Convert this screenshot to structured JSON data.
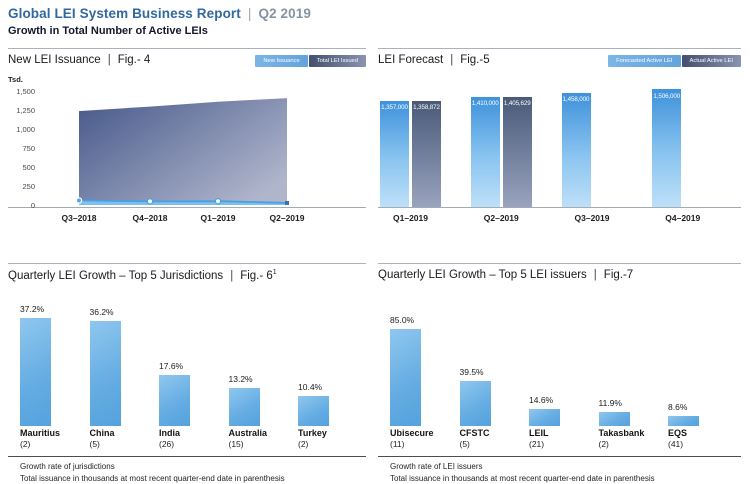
{
  "header": {
    "title": "Global LEI System Business Report",
    "separator": "|",
    "period": "Q2 2019",
    "subtitle": "Growth in Total Number of Active LEIs"
  },
  "panels": {
    "fig4": {
      "title": "New LEI Issuance",
      "sep": "|",
      "fig": "Fig.- 4",
      "unit": "Tsd.",
      "legend": [
        "New Issuance",
        "Total LEI Issued"
      ]
    },
    "fig5": {
      "title": "LEI Forecast",
      "sep": "|",
      "fig": "Fig.-5",
      "legend": [
        "Forecasted Active LEI",
        "Actual Active LEI"
      ]
    },
    "fig6": {
      "title": "Quarterly LEI Growth – Top 5 Jurisdictions",
      "sep": "|",
      "fig": "Fig.- 6",
      "fig_sup": "1",
      "footnotes": [
        "Growth rate of jurisdictions",
        "Total issuance in thousands at most recent quarter-end date in parenthesis"
      ]
    },
    "fig7": {
      "title": "Quarterly LEI Growth – Top 5 LEI issuers",
      "sep": "|",
      "fig": "Fig.-7",
      "footnotes": [
        "Growth rate of LEI issuers",
        "Total issuance in thousands at most recent quarter-end date in parenthesis"
      ]
    }
  },
  "colors": {
    "header_blue": "#31689F",
    "header_gray": "#8593A5",
    "light_blue": "#63A3DB",
    "dark_slate": "#46588A",
    "bar_blue": "#64ACE2"
  },
  "chart_data": [
    {
      "id": "fig4",
      "type": "area",
      "title": "New LEI Issuance",
      "ylabel": "Tsd.",
      "ylim": [
        0,
        1500
      ],
      "y_ticks": [
        "1,500",
        "1,250",
        "1,000",
        "750",
        "500",
        "250",
        "0"
      ],
      "x": [
        "Q3–2018",
        "Q4–2018",
        "Q1–2019",
        "Q2–2019"
      ],
      "legend_position": "top-right",
      "series": [
        {
          "name": "New Issuance",
          "values": [
            60,
            48,
            50,
            27
          ]
        },
        {
          "name": "Total LEI Issued",
          "values": [
            1236,
            1295,
            1359,
            1406
          ]
        }
      ]
    },
    {
      "id": "fig5",
      "type": "bar",
      "title": "LEI Forecast",
      "categories": [
        "Q1–2019",
        "Q2–2019",
        "Q3–2019",
        "Q4–2019"
      ],
      "legend_position": "top-right",
      "series": [
        {
          "name": "Forecasted Active LEI",
          "values": [
            1357000,
            1410000,
            1458000,
            1506000
          ]
        },
        {
          "name": "Actual Active LEI",
          "values": [
            1358872,
            1405629,
            null,
            null
          ]
        }
      ]
    },
    {
      "id": "fig6",
      "type": "bar",
      "title": "Quarterly LEI Growth – Top 5 Jurisdictions",
      "unit": "%",
      "categories": [
        "Mauritius",
        "China",
        "India",
        "Australia",
        "Turkey"
      ],
      "counts": [
        2,
        5,
        26,
        15,
        2
      ],
      "values": [
        37.2,
        36.2,
        17.6,
        13.2,
        10.4
      ]
    },
    {
      "id": "fig7",
      "type": "bar",
      "title": "Quarterly LEI Growth – Top 5 LEI issuers",
      "unit": "%",
      "categories": [
        "Ubisecure",
        "CFSTC",
        "LEIL",
        "Takasbank",
        "EQS"
      ],
      "counts": [
        11,
        5,
        21,
        2,
        41
      ],
      "values": [
        85.0,
        39.5,
        14.6,
        11.9,
        8.6
      ]
    }
  ]
}
